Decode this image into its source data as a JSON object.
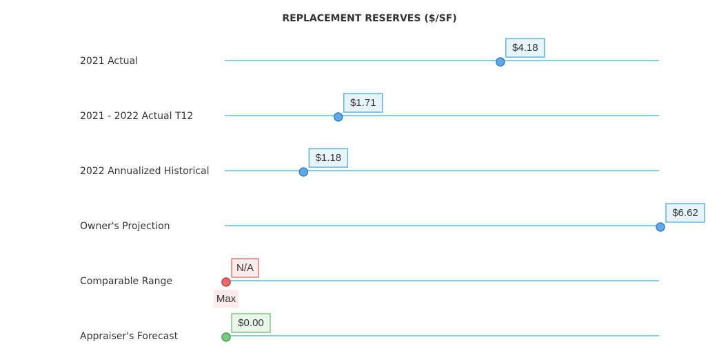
{
  "chart_data": {
    "type": "scatter",
    "title": "REPLACEMENT RESERVES ($/SF)",
    "xlim": [
      0,
      6.62
    ],
    "grid": false,
    "rows": [
      {
        "label": "2021 Actual",
        "value": 4.18,
        "value_label": "$4.18",
        "status": "actual"
      },
      {
        "label": "2021 - 2022 Actual T12",
        "value": 1.71,
        "value_label": "$1.71",
        "status": "actual"
      },
      {
        "label": "2022 Annualized Historical",
        "value": 1.18,
        "value_label": "$1.18",
        "status": "actual"
      },
      {
        "label": "Owner's Projection",
        "value": 6.62,
        "value_label": "$6.62",
        "status": "actual"
      },
      {
        "label": "Comparable Range",
        "value": 0,
        "value_label": "N/A",
        "status": "na",
        "sub_label": "Max"
      },
      {
        "label": "Appraiser's Forecast",
        "value": 0.0,
        "value_label": "$0.00",
        "status": "forecast"
      }
    ]
  },
  "colors": {
    "track": "#7fcbec",
    "actual_fill": "#5fa8ec",
    "actual_stroke": "#2f7fcf",
    "actual_box_fill": "#e8f4fc",
    "actual_box_stroke": "#5fb4e2",
    "na_fill": "#e86a6a",
    "na_stroke": "#c04040",
    "na_box_fill": "#fdeaea",
    "na_box_stroke": "#e07a7a",
    "forecast_fill": "#79c97c",
    "forecast_stroke": "#4a9a4e",
    "forecast_box_fill": "#eaf6ea",
    "forecast_box_stroke": "#7cc57f"
  }
}
